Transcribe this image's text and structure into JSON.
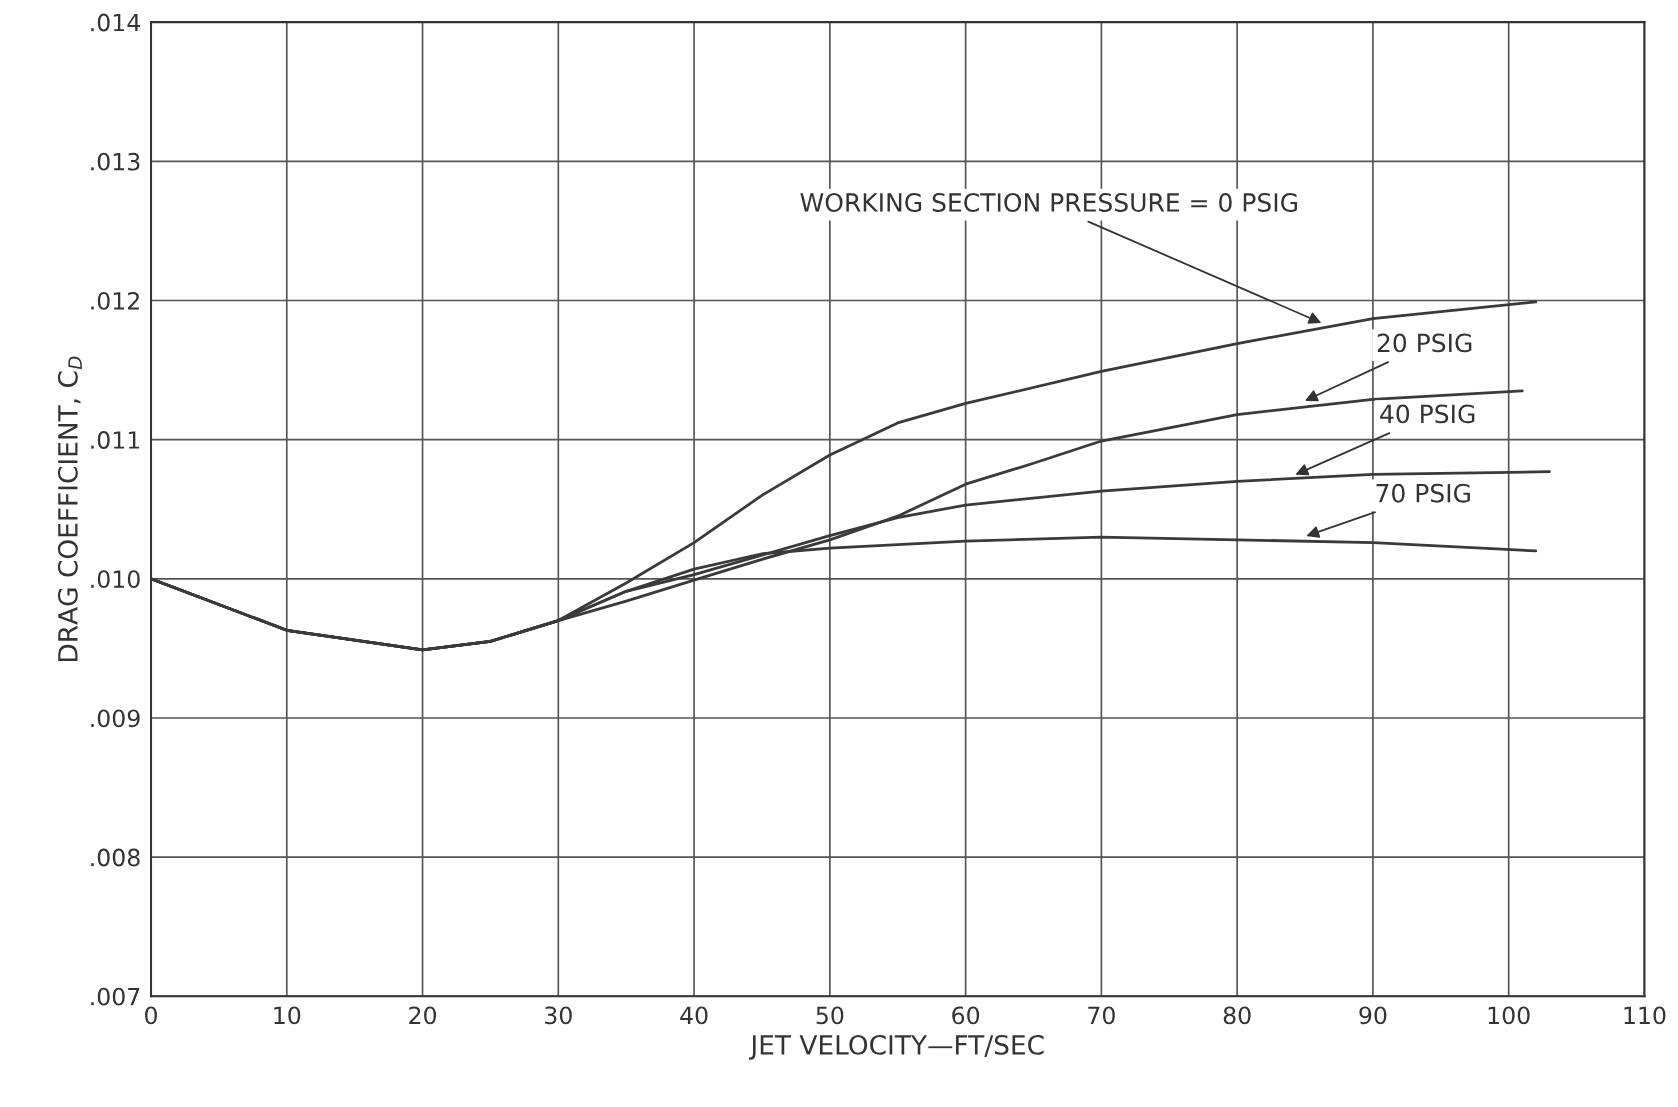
{
  "chart_data": {
    "type": "line",
    "xlabel": "JET VELOCITY—FT/SEC",
    "ylabel": "DRAG COEFFICIENT, C$_{D}$",
    "xlim": [
      0,
      110
    ],
    "xticks": [
      0,
      10,
      20,
      30,
      40,
      50,
      60,
      70,
      80,
      90,
      100,
      110
    ],
    "ylim": [
      0.007,
      0.014
    ],
    "yticks": [
      {
        "value": 0.007,
        "label": ".007"
      },
      {
        "value": 0.008,
        "label": ".008"
      },
      {
        "value": 0.009,
        "label": ".009"
      },
      {
        "value": 0.01,
        "label": ".010"
      },
      {
        "value": 0.011,
        "label": ".011"
      },
      {
        "value": 0.012,
        "label": ".012"
      },
      {
        "value": 0.013,
        "label": ".013"
      },
      {
        "value": 0.014,
        "label": ".014"
      }
    ],
    "grid": true,
    "marker": "none",
    "line_style": "solid",
    "series": [
      {
        "color": "#3a3a3a",
        "x": [
          0,
          10,
          20,
          25,
          30,
          35,
          40,
          45,
          50,
          55,
          60,
          70,
          80,
          90,
          102
        ],
        "values": [
          0.01,
          0.00963,
          0.00949,
          0.00955,
          0.0097,
          0.00997,
          0.01026,
          0.0106,
          0.01089,
          0.01112,
          0.01126,
          0.01149,
          0.01169,
          0.01187,
          0.01199
        ]
      },
      {
        "color": "#3a3a3a",
        "x": [
          0,
          10,
          20,
          25,
          30,
          35,
          40,
          45,
          50,
          55,
          60,
          65,
          70,
          80,
          90,
          101
        ],
        "values": [
          0.01,
          0.00963,
          0.00949,
          0.00955,
          0.0097,
          0.00984,
          0.00999,
          0.01014,
          0.01028,
          0.01045,
          0.01068,
          0.01083,
          0.01099,
          0.01118,
          0.01129,
          0.01135
        ]
      },
      {
        "color": "#3a3a3a",
        "x": [
          0,
          10,
          20,
          25,
          30,
          35,
          40,
          45,
          50,
          55,
          60,
          70,
          80,
          90,
          103
        ],
        "values": [
          0.01,
          0.00963,
          0.00949,
          0.00955,
          0.0097,
          0.00991,
          0.01003,
          0.01017,
          0.01031,
          0.01044,
          0.01053,
          0.01063,
          0.0107,
          0.01075,
          0.01077
        ]
      },
      {
        "color": "#3a3a3a",
        "x": [
          0,
          10,
          20,
          25,
          30,
          35,
          40,
          45,
          50,
          60,
          70,
          80,
          90,
          102
        ],
        "values": [
          0.01,
          0.00963,
          0.00949,
          0.00955,
          0.0097,
          0.00991,
          0.01007,
          0.01018,
          0.01022,
          0.01027,
          0.0103,
          0.01028,
          0.01026,
          0.0102
        ]
      }
    ],
    "annotations": [
      {
        "text": "WORKING SECTION PRESSURE = 0 PSIG",
        "x": 86.4,
        "y": 0.01183
      },
      {
        "text": "20 PSIG",
        "x": 84.8,
        "y": 0.01127
      },
      {
        "text": "40 PSIG",
        "x": 84.1,
        "y": 0.01074
      },
      {
        "text": "70 PSIG",
        "x": 84.9,
        "y": 0.0103
      }
    ]
  }
}
